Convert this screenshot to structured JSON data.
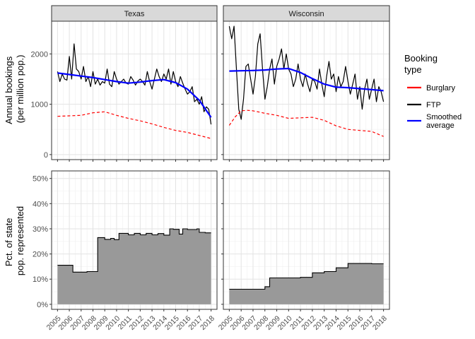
{
  "figure": {
    "facets": [
      "Texas",
      "Wisconsin"
    ],
    "top_ylabel_lines": [
      "Annual bookings",
      "(per million pop.)"
    ],
    "bottom_ylabel_lines": [
      "Pct. of state",
      "pop. represented"
    ],
    "top_yticks": [
      "0",
      "1000",
      "2000"
    ],
    "bottom_yticks": [
      "0%",
      "10%",
      "20%",
      "30%",
      "40%",
      "50%"
    ],
    "xticks": [
      "2005",
      "2006",
      "2007",
      "2008",
      "2009",
      "2010",
      "2011",
      "2012",
      "2013",
      "2014",
      "2015",
      "2016",
      "2017",
      "2018"
    ],
    "legend_title_lines": [
      "Booking",
      "type"
    ],
    "legend_items": [
      {
        "label_lines": [
          "Burglary"
        ],
        "color": "#ff0000",
        "dashed": true
      },
      {
        "label_lines": [
          "FTP"
        ],
        "color": "#000000",
        "dashed": false
      },
      {
        "label_lines": [
          "Smoothed",
          "average"
        ],
        "color": "#0000ff",
        "dashed": false
      }
    ]
  },
  "chart_data": [
    {
      "type": "line",
      "panel": "top",
      "facet": "Texas",
      "ylim": [
        -100,
        2650
      ],
      "xlim": [
        2004.5,
        2018.5
      ],
      "grid": true,
      "series": [
        {
          "name": "FTP",
          "color": "#000000",
          "x": [
            2005.0,
            2005.2,
            2005.4,
            2005.6,
            2005.8,
            2006.0,
            2006.2,
            2006.4,
            2006.6,
            2006.8,
            2007.0,
            2007.2,
            2007.4,
            2007.6,
            2007.8,
            2008.0,
            2008.2,
            2008.4,
            2008.6,
            2008.8,
            2009.0,
            2009.2,
            2009.4,
            2009.6,
            2009.8,
            2010.0,
            2010.2,
            2010.4,
            2010.6,
            2010.8,
            2011.0,
            2011.2,
            2011.4,
            2011.6,
            2011.8,
            2012.0,
            2012.2,
            2012.4,
            2012.6,
            2012.8,
            2013.0,
            2013.2,
            2013.4,
            2013.6,
            2013.8,
            2014.0,
            2014.2,
            2014.4,
            2014.6,
            2014.8,
            2015.0,
            2015.2,
            2015.4,
            2015.6,
            2015.8,
            2016.0,
            2016.2,
            2016.4,
            2016.6,
            2016.8,
            2017.0,
            2017.2,
            2017.4,
            2017.6,
            2017.8,
            2018.0
          ],
          "y": [
            1650,
            1450,
            1600,
            1500,
            1480,
            1950,
            1500,
            2200,
            1700,
            1650,
            1500,
            1750,
            1450,
            1550,
            1350,
            1650,
            1400,
            1500,
            1380,
            1450,
            1420,
            1700,
            1400,
            1350,
            1650,
            1500,
            1400,
            1450,
            1500,
            1420,
            1400,
            1550,
            1480,
            1380,
            1460,
            1500,
            1450,
            1380,
            1650,
            1450,
            1300,
            1500,
            1700,
            1550,
            1450,
            1600,
            1500,
            1700,
            1400,
            1650,
            1450,
            1350,
            1550,
            1420,
            1300,
            1200,
            1250,
            1350,
            1050,
            1100,
            1000,
            1150,
            850,
            950,
            900,
            600
          ]
        },
        {
          "name": "Burglary",
          "color": "#ff0000",
          "dashed": true,
          "x": [
            2005,
            2006,
            2007,
            2008,
            2009,
            2010,
            2011,
            2012,
            2013,
            2014,
            2015,
            2016,
            2017,
            2018
          ],
          "y": [
            760,
            770,
            780,
            830,
            850,
            780,
            720,
            670,
            610,
            540,
            480,
            440,
            380,
            320
          ]
        },
        {
          "name": "Smoothed average",
          "color": "#0000ff",
          "x": [
            2005,
            2006,
            2007,
            2008,
            2009,
            2010,
            2011,
            2012,
            2013,
            2014,
            2015,
            2016,
            2017,
            2018
          ],
          "y": [
            1620,
            1590,
            1560,
            1530,
            1490,
            1450,
            1420,
            1440,
            1470,
            1490,
            1430,
            1300,
            1080,
            740
          ]
        }
      ]
    },
    {
      "type": "line",
      "panel": "top",
      "facet": "Wisconsin",
      "ylim": [
        -100,
        2650
      ],
      "xlim": [
        2004.5,
        2018.5
      ],
      "grid": true,
      "series": [
        {
          "name": "FTP",
          "color": "#000000",
          "x": [
            2005.0,
            2005.2,
            2005.4,
            2005.6,
            2005.8,
            2006.0,
            2006.2,
            2006.4,
            2006.6,
            2006.8,
            2007.0,
            2007.2,
            2007.4,
            2007.6,
            2007.8,
            2008.0,
            2008.2,
            2008.4,
            2008.6,
            2008.8,
            2009.0,
            2009.2,
            2009.4,
            2009.6,
            2009.8,
            2010.0,
            2010.2,
            2010.4,
            2010.6,
            2010.8,
            2011.0,
            2011.2,
            2011.4,
            2011.6,
            2011.8,
            2012.0,
            2012.2,
            2012.4,
            2012.6,
            2012.8,
            2013.0,
            2013.2,
            2013.4,
            2013.6,
            2013.8,
            2014.0,
            2014.2,
            2014.4,
            2014.6,
            2014.8,
            2015.0,
            2015.2,
            2015.4,
            2015.6,
            2015.8,
            2016.0,
            2016.2,
            2016.4,
            2016.6,
            2016.8,
            2017.0,
            2017.2,
            2017.4,
            2017.6,
            2017.8,
            2018.0
          ],
          "y": [
            2550,
            2300,
            2550,
            1700,
            900,
            700,
            1100,
            1750,
            1800,
            1500,
            1200,
            1550,
            2200,
            2400,
            1700,
            1100,
            1350,
            1700,
            1900,
            1400,
            1750,
            1900,
            2100,
            1700,
            2000,
            1700,
            1600,
            1350,
            1500,
            1800,
            1500,
            1350,
            1600,
            1400,
            1250,
            1500,
            1450,
            1300,
            1700,
            1400,
            1150,
            1550,
            1850,
            1500,
            1600,
            1250,
            1550,
            1350,
            1450,
            1750,
            1450,
            1200,
            1400,
            1600,
            1100,
            1350,
            900,
            1300,
            1500,
            1100,
            1300,
            1500,
            1050,
            1350,
            1250,
            1050
          ]
        },
        {
          "name": "Burglary",
          "color": "#ff0000",
          "dashed": true,
          "x": [
            2005,
            2005.5,
            2006,
            2006.5,
            2007,
            2008,
            2009,
            2010,
            2011,
            2012,
            2013,
            2014,
            2015,
            2016,
            2017,
            2018
          ],
          "y": [
            580,
            750,
            870,
            880,
            870,
            820,
            780,
            720,
            730,
            740,
            680,
            570,
            500,
            480,
            460,
            360
          ]
        },
        {
          "name": "Smoothed average",
          "color": "#0000ff",
          "x": [
            2005,
            2006,
            2007,
            2008,
            2009,
            2010,
            2011,
            2012,
            2013,
            2014,
            2015,
            2016,
            2017,
            2018
          ],
          "y": [
            1660,
            1665,
            1670,
            1680,
            1700,
            1710,
            1630,
            1510,
            1400,
            1340,
            1330,
            1310,
            1290,
            1270
          ]
        }
      ]
    },
    {
      "type": "area",
      "panel": "bottom",
      "facet": "Texas",
      "ylim": [
        -0.02,
        0.53
      ],
      "xlim": [
        2004.5,
        2018.5
      ],
      "grid": true,
      "series": [
        {
          "name": "",
          "color": "#999999",
          "x": [
            2005,
            2006.3,
            2006.3,
            2007.5,
            2007.5,
            2008.4,
            2008.4,
            2009.0,
            2009.0,
            2009.5,
            2009.5,
            2009.8,
            2009.8,
            2010.2,
            2010.2,
            2011.0,
            2011.0,
            2011.5,
            2011.5,
            2012.0,
            2012.0,
            2012.5,
            2012.5,
            2013.0,
            2013.0,
            2013.5,
            2013.5,
            2014.0,
            2014.0,
            2014.5,
            2014.5,
            2014.8,
            2014.8,
            2015.3,
            2015.3,
            2015.6,
            2015.6,
            2016.0,
            2016.0,
            2016.8,
            2016.8,
            2017.0,
            2017.0,
            2017.5,
            2017.5,
            2018.0
          ],
          "y": [
            0.155,
            0.155,
            0.128,
            0.128,
            0.13,
            0.13,
            0.265,
            0.265,
            0.258,
            0.258,
            0.262,
            0.262,
            0.257,
            0.257,
            0.282,
            0.282,
            0.276,
            0.276,
            0.282,
            0.282,
            0.276,
            0.276,
            0.282,
            0.282,
            0.276,
            0.276,
            0.281,
            0.281,
            0.275,
            0.275,
            0.3,
            0.3,
            0.298,
            0.298,
            0.279,
            0.279,
            0.3,
            0.3,
            0.297,
            0.297,
            0.3,
            0.3,
            0.286,
            0.286,
            0.284,
            0.284
          ]
        }
      ]
    },
    {
      "type": "area",
      "panel": "bottom",
      "facet": "Wisconsin",
      "ylim": [
        -0.02,
        0.53
      ],
      "xlim": [
        2004.5,
        2018.5
      ],
      "grid": true,
      "series": [
        {
          "name": "",
          "color": "#999999",
          "x": [
            2005,
            2008.0,
            2008.0,
            2008.4,
            2008.4,
            2011.0,
            2011.0,
            2012.0,
            2012.0,
            2013.0,
            2013.0,
            2014.0,
            2014.0,
            2014.9,
            2014.9,
            2015.0,
            2015.0,
            2016.0,
            2016.0,
            2017.0,
            2017.0,
            2018.0
          ],
          "y": [
            0.06,
            0.06,
            0.07,
            0.07,
            0.105,
            0.105,
            0.107,
            0.107,
            0.125,
            0.125,
            0.13,
            0.13,
            0.145,
            0.145,
            0.145,
            0.145,
            0.162,
            0.162,
            0.162,
            0.162,
            0.161,
            0.161
          ]
        }
      ]
    }
  ]
}
